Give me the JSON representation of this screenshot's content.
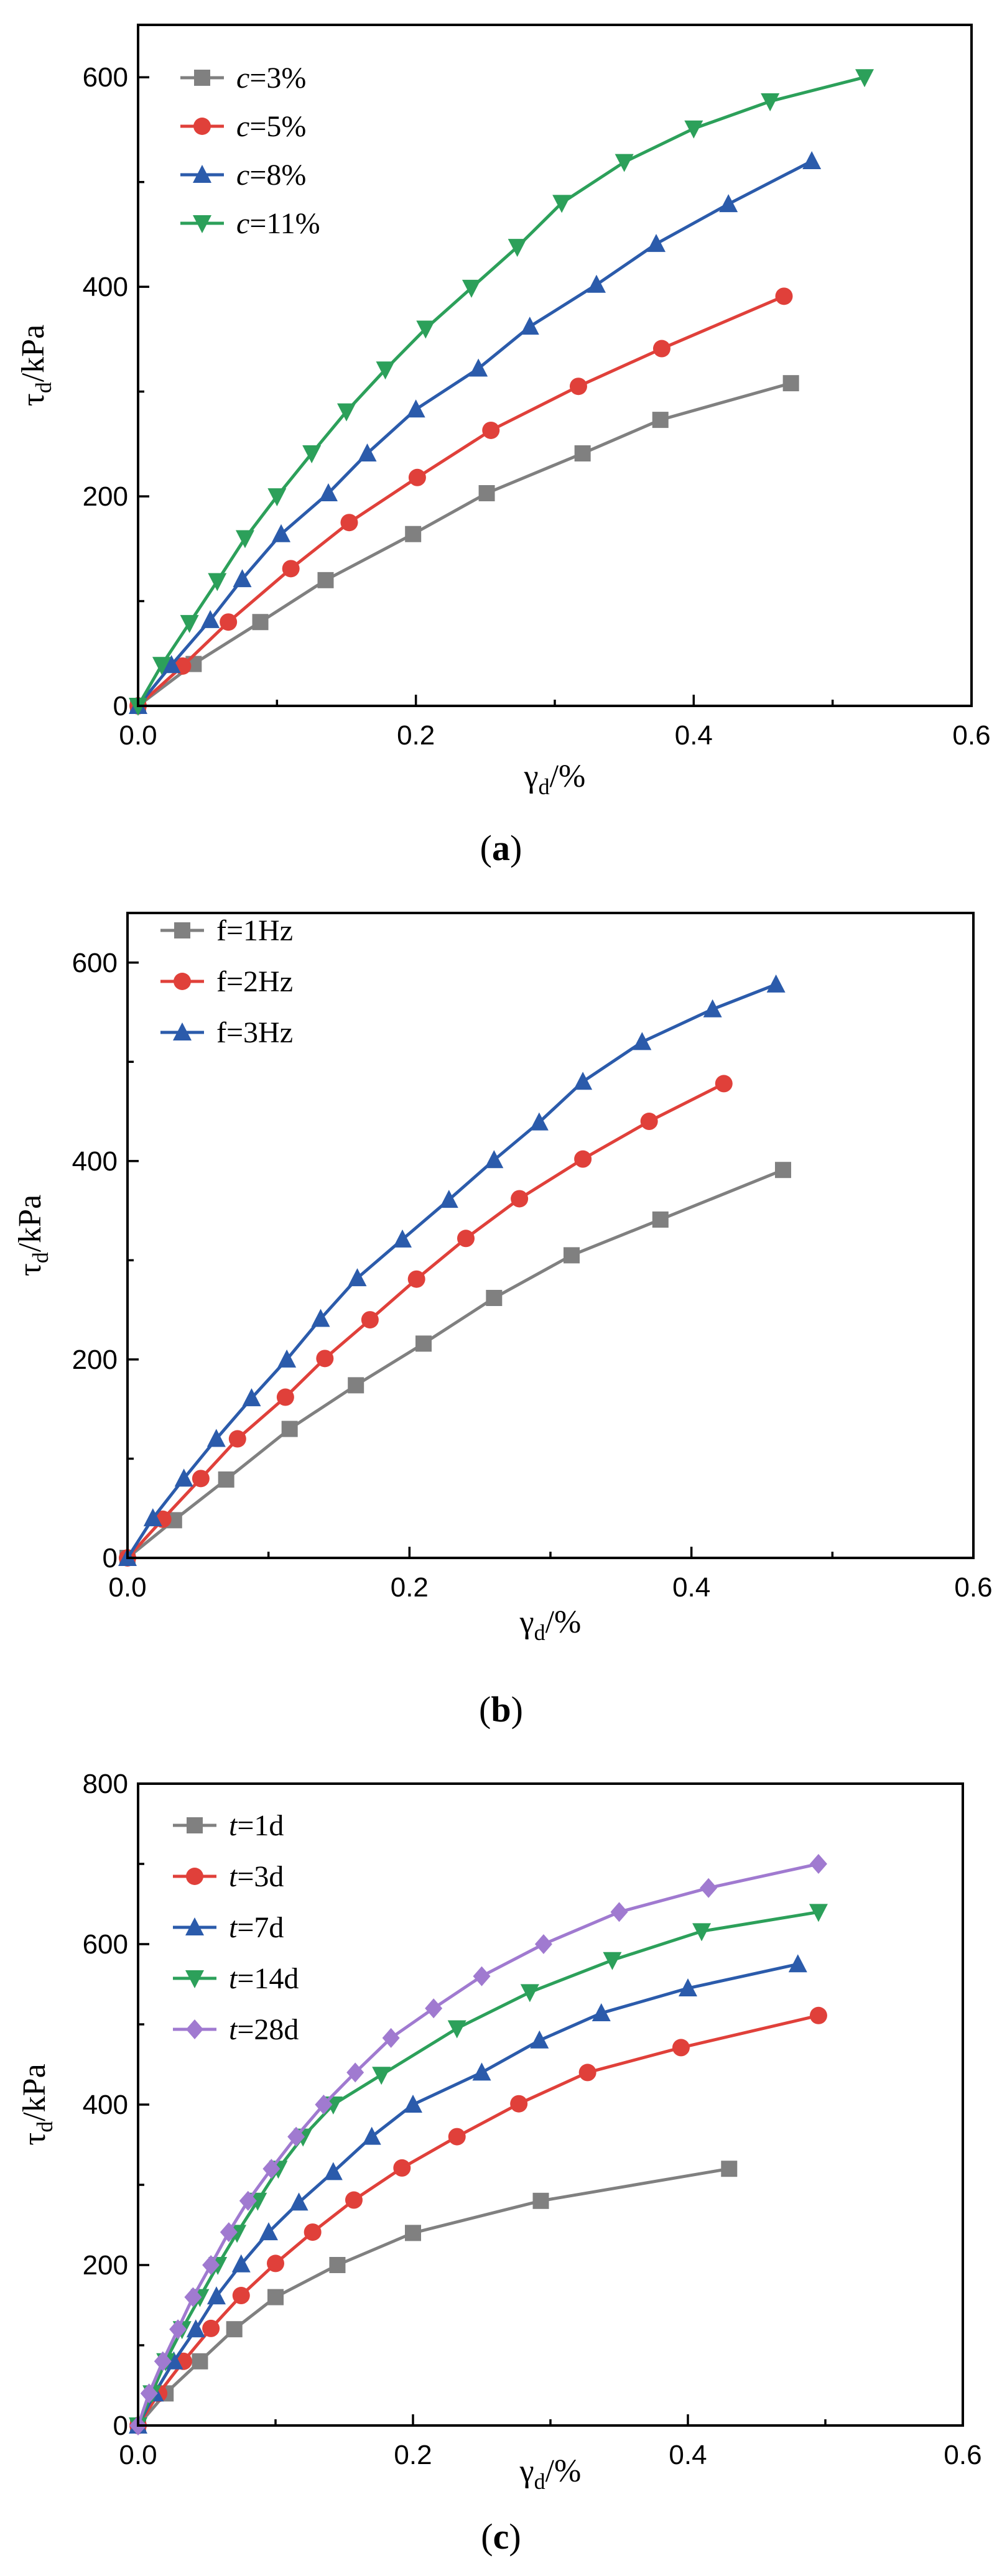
{
  "chart_data": [
    {
      "type": "line",
      "caption": "a",
      "xlabel": "γd/%",
      "ylabel": "τd/kPa",
      "xlim": [
        0,
        0.6
      ],
      "ylim": [
        0,
        650
      ],
      "xticks": [
        "0.0",
        "0.2",
        "0.4",
        "0.6"
      ],
      "yticks": [
        "0",
        "200",
        "400",
        "600"
      ],
      "xtick_values": [
        0,
        0.2,
        0.4,
        0.6
      ],
      "ytick_values": [
        0,
        200,
        400,
        600
      ],
      "legend_position": "top-left",
      "legend_prefix": "c",
      "series": [
        {
          "name": "c=3%",
          "label_var": "c",
          "label_rest": "=3%",
          "color": "#808080",
          "marker": "square",
          "x": [
            0,
            0.04,
            0.088,
            0.135,
            0.198,
            0.251,
            0.32,
            0.376,
            0.47
          ],
          "y": [
            0,
            40,
            80,
            120,
            164,
            203,
            241,
            273,
            308
          ]
        },
        {
          "name": "c=5%",
          "label_var": "c",
          "label_rest": "=5%",
          "color": "#e0403a",
          "marker": "circle",
          "x": [
            0,
            0.032,
            0.065,
            0.11,
            0.152,
            0.201,
            0.254,
            0.317,
            0.377,
            0.465
          ],
          "y": [
            0,
            38,
            80,
            131,
            175,
            218,
            263,
            305,
            341,
            391
          ]
        },
        {
          "name": "c=8%",
          "label_var": "c",
          "label_rest": "=8%",
          "color": "#2b5bab",
          "marker": "triangle-up",
          "x": [
            0,
            0.024,
            0.052,
            0.075,
            0.103,
            0.137,
            0.165,
            0.2,
            0.245,
            0.282,
            0.33,
            0.373,
            0.425,
            0.485
          ],
          "y": [
            0,
            39,
            82,
            121,
            164,
            203,
            241,
            283,
            322,
            362,
            402,
            441,
            479,
            520
          ]
        },
        {
          "name": "c=11%",
          "label_var": "c",
          "label_rest": "=11%",
          "color": "#2ca05a",
          "marker": "triangle-down",
          "x": [
            0,
            0.017,
            0.037,
            0.057,
            0.077,
            0.1,
            0.125,
            0.15,
            0.178,
            0.207,
            0.24,
            0.273,
            0.305,
            0.35,
            0.4,
            0.455,
            0.523
          ],
          "y": [
            0,
            39,
            79,
            119,
            160,
            200,
            241,
            281,
            321,
            360,
            399,
            438,
            480,
            519,
            551,
            577,
            600
          ]
        }
      ]
    },
    {
      "type": "line",
      "caption": "b",
      "xlabel": "γd/%",
      "ylabel": "τd/kPa",
      "xlim": [
        0,
        0.6
      ],
      "ylim": [
        0,
        650
      ],
      "xticks": [
        "0.0",
        "0.2",
        "0.4",
        "0.6"
      ],
      "yticks": [
        "0",
        "200",
        "400",
        "600"
      ],
      "xtick_values": [
        0,
        0.2,
        0.4,
        0.6
      ],
      "ytick_values": [
        0,
        200,
        400,
        600
      ],
      "legend_position": "top-left",
      "series": [
        {
          "name": "f=1Hz",
          "label_var": "",
          "label_rest": "f=1Hz",
          "color": "#808080",
          "marker": "square",
          "x": [
            0,
            0.033,
            0.07,
            0.115,
            0.162,
            0.21,
            0.26,
            0.315,
            0.378,
            0.465
          ],
          "y": [
            0,
            38,
            79,
            130,
            174,
            216,
            262,
            305,
            341,
            391
          ]
        },
        {
          "name": "f=2Hz",
          "label_var": "",
          "label_rest": "f=2Hz",
          "color": "#e0403a",
          "marker": "circle",
          "x": [
            0,
            0.025,
            0.052,
            0.078,
            0.112,
            0.14,
            0.172,
            0.205,
            0.24,
            0.278,
            0.323,
            0.37,
            0.423
          ],
          "y": [
            0,
            39,
            80,
            120,
            162,
            201,
            240,
            281,
            322,
            362,
            402,
            440,
            478
          ]
        },
        {
          "name": "f=3Hz",
          "label_var": "",
          "label_rest": "f=3Hz",
          "color": "#2b5bab",
          "marker": "triangle-up",
          "x": [
            0,
            0.018,
            0.04,
            0.063,
            0.088,
            0.113,
            0.137,
            0.163,
            0.195,
            0.228,
            0.26,
            0.292,
            0.323,
            0.365,
            0.415,
            0.46
          ],
          "y": [
            0,
            40,
            80,
            120,
            161,
            200,
            241,
            282,
            321,
            361,
            401,
            439,
            480,
            520,
            553,
            578
          ]
        }
      ]
    },
    {
      "type": "line",
      "caption": "c",
      "xlabel": "γd/%",
      "ylabel": "τd/kPa",
      "xlim": [
        0,
        0.6
      ],
      "ylim": [
        0,
        800
      ],
      "xticks": [
        "0.0",
        "0.2",
        "0.4",
        "0.6"
      ],
      "yticks": [
        "0",
        "200",
        "400",
        "600",
        "800"
      ],
      "xtick_values": [
        0,
        0.2,
        0.4,
        0.6
      ],
      "ytick_values": [
        0,
        200,
        400,
        600,
        800
      ],
      "legend_position": "top-left",
      "series": [
        {
          "name": "t=1d",
          "label_var": "t",
          "label_rest": "=1d",
          "color": "#808080",
          "marker": "square",
          "x": [
            0,
            0.02,
            0.045,
            0.07,
            0.1,
            0.145,
            0.2,
            0.293,
            0.43
          ],
          "y": [
            0,
            40,
            80,
            120,
            160,
            200,
            240,
            280,
            320
          ]
        },
        {
          "name": "t=3d",
          "label_var": "t",
          "label_rest": "=3d",
          "color": "#e0403a",
          "marker": "circle",
          "x": [
            0,
            0.015,
            0.033,
            0.053,
            0.075,
            0.1,
            0.127,
            0.157,
            0.192,
            0.232,
            0.277,
            0.327,
            0.395,
            0.495
          ],
          "y": [
            0,
            40,
            80,
            121,
            162,
            202,
            241,
            281,
            321,
            360,
            401,
            440,
            471,
            511
          ]
        },
        {
          "name": "t=7d",
          "label_var": "t",
          "label_rest": "=7d",
          "color": "#2b5bab",
          "marker": "triangle-up",
          "x": [
            0,
            0.012,
            0.026,
            0.042,
            0.057,
            0.075,
            0.095,
            0.117,
            0.142,
            0.17,
            0.2,
            0.25,
            0.292,
            0.337,
            0.4,
            0.48
          ],
          "y": [
            0,
            40,
            80,
            120,
            161,
            201,
            241,
            278,
            316,
            360,
            400,
            440,
            480,
            514,
            545,
            575
          ]
        },
        {
          "name": "t=14d",
          "label_var": "t",
          "label_rest": "=14d",
          "color": "#2ca05a",
          "marker": "triangle-down",
          "x": [
            0,
            0.01,
            0.02,
            0.032,
            0.045,
            0.058,
            0.072,
            0.087,
            0.102,
            0.12,
            0.142,
            0.177,
            0.232,
            0.285,
            0.345,
            0.41,
            0.495
          ],
          "y": [
            0,
            40,
            80,
            120,
            160,
            200,
            240,
            280,
            320,
            360,
            400,
            437,
            495,
            540,
            580,
            616,
            640
          ]
        },
        {
          "name": "t=28d",
          "label_var": "t",
          "label_rest": "=28d",
          "color": "#a07ad0",
          "marker": "diamond",
          "x": [
            0,
            0.008,
            0.018,
            0.029,
            0.04,
            0.053,
            0.066,
            0.08,
            0.097,
            0.115,
            0.135,
            0.158,
            0.184,
            0.215,
            0.25,
            0.295,
            0.35,
            0.415,
            0.495
          ],
          "y": [
            0,
            40,
            80,
            120,
            160,
            200,
            241,
            280,
            320,
            360,
            400,
            440,
            483,
            520,
            560,
            600,
            640,
            670,
            700
          ]
        }
      ]
    }
  ]
}
